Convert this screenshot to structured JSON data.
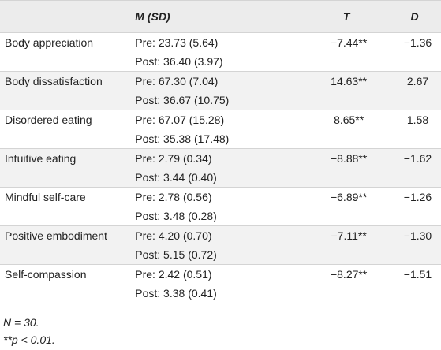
{
  "table": {
    "headers": {
      "measure": "",
      "m_sd": "M (SD)",
      "t": "T",
      "d": "D"
    },
    "rows": [
      {
        "measure": "Body appreciation",
        "pre": "Pre: 23.73 (5.64)",
        "post": "Post: 36.40 (3.97)",
        "t": "−7.44**",
        "d": "−1.36"
      },
      {
        "measure": "Body dissatisfaction",
        "pre": "Pre: 67.30 (7.04)",
        "post": "Post: 36.67 (10.75)",
        "t": "14.63**",
        "d": "2.67"
      },
      {
        "measure": "Disordered eating",
        "pre": "Pre: 67.07 (15.28)",
        "post": "Post: 35.38 (17.48)",
        "t": "8.65**",
        "d": "1.58"
      },
      {
        "measure": "Intuitive eating",
        "pre": "Pre: 2.79 (0.34)",
        "post": "Post: 3.44 (0.40)",
        "t": "−8.88**",
        "d": "−1.62"
      },
      {
        "measure": "Mindful self-care",
        "pre": "Pre: 2.78 (0.56)",
        "post": "Post: 3.48 (0.28)",
        "t": "−6.89**",
        "d": "−1.26"
      },
      {
        "measure": "Positive embodiment",
        "pre": "Pre: 4.20 (0.70)",
        "post": "Post: 5.15 (0.72)",
        "t": "−7.11**",
        "d": "−1.30"
      },
      {
        "measure": "Self-compassion",
        "pre": "Pre: 2.42 (0.51)",
        "post": "Post: 3.38 (0.41)",
        "t": "−8.27**",
        "d": "−1.51"
      }
    ]
  },
  "notes": {
    "n": "N = 30.",
    "p": "**p < 0.01."
  }
}
